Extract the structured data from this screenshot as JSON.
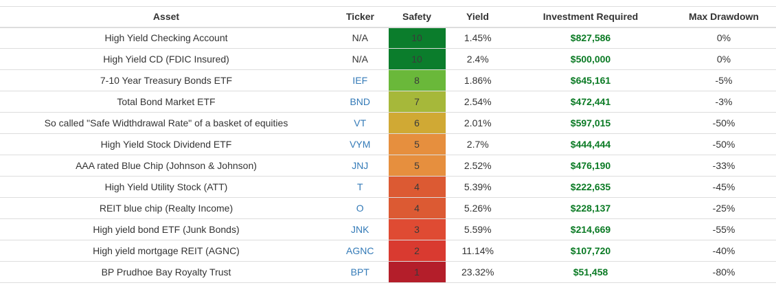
{
  "table": {
    "headers": {
      "asset": "Asset",
      "ticker": "Ticker",
      "safety": "Safety",
      "yield": "Yield",
      "investment": "Investment Required",
      "drawdown": "Max Drawdown"
    },
    "rows": [
      {
        "asset": "High Yield Checking Account",
        "ticker": "N/A",
        "ticker_link": false,
        "safety": "10",
        "safety_color": "#0b7d2c",
        "yield": "1.45%",
        "investment": "$827,586",
        "drawdown": "0%"
      },
      {
        "asset": "High Yield CD (FDIC Insured)",
        "ticker": "N/A",
        "ticker_link": false,
        "safety": "10",
        "safety_color": "#0b7d2c",
        "yield": "2.4%",
        "investment": "$500,000",
        "drawdown": "0%"
      },
      {
        "asset": "7-10 Year Treasury Bonds ETF",
        "ticker": "IEF",
        "ticker_link": true,
        "safety": "8",
        "safety_color": "#6ab83a",
        "yield": "1.86%",
        "investment": "$645,161",
        "drawdown": "-5%"
      },
      {
        "asset": "Total Bond Market ETF",
        "ticker": "BND",
        "ticker_link": true,
        "safety": "7",
        "safety_color": "#a6b83a",
        "yield": "2.54%",
        "investment": "$472,441",
        "drawdown": "-3%"
      },
      {
        "asset": "So called \"Safe Widthdrawal Rate\" of a basket of equities",
        "ticker": "VT",
        "ticker_link": true,
        "safety": "6",
        "safety_color": "#d0a934",
        "yield": "2.01%",
        "investment": "$597,015",
        "drawdown": "-50%"
      },
      {
        "asset": "High Yield Stock Dividend ETF",
        "ticker": "VYM",
        "ticker_link": true,
        "safety": "5",
        "safety_color": "#e68f3e",
        "yield": "2.7%",
        "investment": "$444,444",
        "drawdown": "-50%"
      },
      {
        "asset": "AAA rated Blue Chip (Johnson & Johnson)",
        "ticker": "JNJ",
        "ticker_link": true,
        "safety": "5",
        "safety_color": "#e68f3e",
        "yield": "2.52%",
        "investment": "$476,190",
        "drawdown": "-33%"
      },
      {
        "asset": "High Yield Utility Stock (ATT)",
        "ticker": "T",
        "ticker_link": true,
        "safety": "4",
        "safety_color": "#dc5a33",
        "yield": "5.39%",
        "investment": "$222,635",
        "drawdown": "-45%"
      },
      {
        "asset": "REIT blue chip (Realty Income)",
        "ticker": "O",
        "ticker_link": true,
        "safety": "4",
        "safety_color": "#dc5a33",
        "yield": "5.26%",
        "investment": "$228,137",
        "drawdown": "-25%"
      },
      {
        "asset": "High yield bond ETF (Junk Bonds)",
        "ticker": "JNK",
        "ticker_link": true,
        "safety": "3",
        "safety_color": "#df4b33",
        "yield": "5.59%",
        "investment": "$214,669",
        "drawdown": "-55%"
      },
      {
        "asset": "High yield mortgage REIT (AGNC)",
        "ticker": "AGNC",
        "ticker_link": true,
        "safety": "2",
        "safety_color": "#d93a30",
        "yield": "11.14%",
        "investment": "$107,720",
        "drawdown": "-40%"
      },
      {
        "asset": "BP Prudhoe Bay Royalty Trust",
        "ticker": "BPT",
        "ticker_link": true,
        "safety": "1",
        "safety_color": "#b41e2a",
        "yield": "23.32%",
        "investment": "$51,458",
        "drawdown": "-80%"
      }
    ]
  }
}
